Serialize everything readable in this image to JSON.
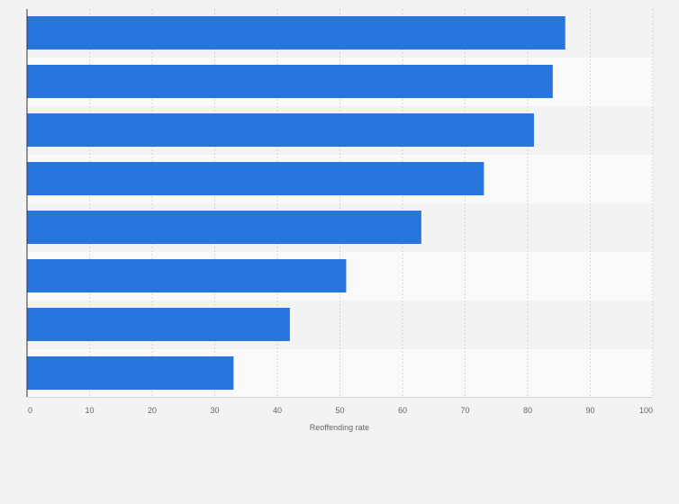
{
  "colors": {
    "bar": "#2876dd",
    "background": "#f3f3f3",
    "band_light": "#f9f9f9",
    "band_dark": "#f3f3f3",
    "grid": "#d6d6d6",
    "axis": "#333333",
    "text": "#666666"
  },
  "chart_data": {
    "type": "bar",
    "orientation": "horizontal",
    "categories": [
      "",
      "",
      "",
      "",
      "",
      "",
      "",
      ""
    ],
    "values": [
      86,
      84,
      81,
      73,
      63,
      51,
      42,
      33
    ],
    "xlabel": "Reoffending rate",
    "ylabel": "",
    "xlim": [
      0,
      100
    ],
    "xticks": [
      0,
      10,
      20,
      30,
      40,
      50,
      60,
      70,
      80,
      90,
      100
    ],
    "grid": true,
    "legend": "none"
  }
}
